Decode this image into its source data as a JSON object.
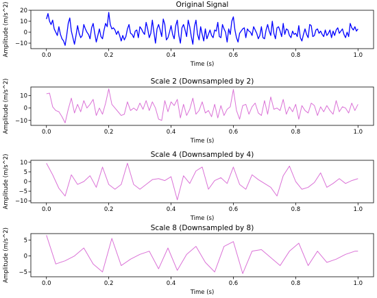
{
  "chart_data": [
    {
      "type": "line",
      "title": "Original Signal",
      "xlabel": "Time (s)",
      "ylabel": "Amplitude (m/s^2)",
      "xlim": [
        -0.05,
        1.05
      ],
      "ylim": [
        -15,
        20
      ],
      "xticks": [
        0.0,
        0.2,
        0.4,
        0.6,
        0.8,
        1.0
      ],
      "xtick_labels": [
        "0.0",
        "0.2",
        "0.4",
        "0.6",
        "0.8",
        "1.0"
      ],
      "yticks": [
        -10,
        0,
        10,
        20
      ],
      "ytick_labels": [
        "−10",
        "0",
        "10",
        "20"
      ],
      "color": "#0000ff",
      "series": [
        {
          "x": [
            0.0,
            0.005,
            0.01,
            0.015,
            0.02,
            0.025,
            0.03,
            0.035,
            0.04,
            0.045,
            0.05,
            0.055,
            0.06,
            0.065,
            0.07,
            0.075,
            0.08,
            0.085,
            0.09,
            0.095,
            0.1,
            0.105,
            0.11,
            0.115,
            0.12,
            0.125,
            0.13,
            0.135,
            0.14,
            0.145,
            0.15,
            0.155,
            0.16,
            0.165,
            0.17,
            0.175,
            0.18,
            0.185,
            0.19,
            0.195,
            0.2,
            0.205,
            0.21,
            0.215,
            0.22,
            0.225,
            0.23,
            0.235,
            0.24,
            0.245,
            0.25,
            0.255,
            0.26,
            0.265,
            0.27,
            0.275,
            0.28,
            0.285,
            0.29,
            0.295,
            0.3,
            0.305,
            0.31,
            0.315,
            0.32,
            0.325,
            0.33,
            0.335,
            0.34,
            0.345,
            0.35,
            0.355,
            0.36,
            0.365,
            0.37,
            0.375,
            0.38,
            0.385,
            0.39,
            0.395,
            0.4,
            0.405,
            0.41,
            0.415,
            0.42,
            0.425,
            0.43,
            0.435,
            0.44,
            0.445,
            0.45,
            0.455,
            0.46,
            0.465,
            0.47,
            0.475,
            0.48,
            0.485,
            0.49,
            0.495,
            0.5,
            0.505,
            0.51,
            0.515,
            0.52,
            0.525,
            0.53,
            0.535,
            0.54,
            0.545,
            0.55,
            0.555,
            0.56,
            0.565,
            0.57,
            0.575,
            0.58,
            0.585,
            0.59,
            0.595,
            0.6,
            0.605,
            0.61,
            0.615,
            0.62,
            0.625,
            0.63,
            0.635,
            0.64,
            0.645,
            0.65,
            0.655,
            0.66,
            0.665,
            0.67,
            0.675,
            0.68,
            0.685,
            0.69,
            0.695,
            0.7,
            0.705,
            0.71,
            0.715,
            0.72,
            0.725,
            0.73,
            0.735,
            0.74,
            0.745,
            0.75,
            0.755,
            0.76,
            0.765,
            0.77,
            0.775,
            0.78,
            0.785,
            0.79,
            0.795,
            0.8,
            0.805,
            0.81,
            0.815,
            0.82,
            0.825,
            0.83,
            0.835,
            0.84,
            0.845,
            0.85,
            0.855,
            0.86,
            0.865,
            0.87,
            0.875,
            0.88,
            0.885,
            0.89,
            0.895,
            0.9,
            0.905,
            0.91,
            0.915,
            0.92,
            0.925,
            0.93,
            0.935,
            0.94,
            0.945,
            0.95,
            0.955,
            0.96,
            0.965,
            0.97,
            0.975,
            0.98,
            0.985,
            0.99,
            0.995,
            1.0
          ],
          "y": [
            12,
            17,
            10,
            7,
            11,
            3,
            0,
            -3,
            5,
            -2,
            -6,
            -8,
            -12,
            -3,
            8,
            13,
            1,
            -5,
            -11,
            -3,
            6,
            -1,
            -5,
            -3,
            7,
            3,
            0,
            -2,
            -6,
            4,
            8,
            -1,
            -9,
            -3,
            3,
            -4,
            -6,
            2,
            8,
            5,
            18,
            7,
            3,
            4,
            2,
            -2,
            1,
            -3,
            -8,
            -3,
            -7,
            -4,
            3,
            7,
            -1,
            -2,
            -5,
            1,
            2,
            -5,
            5,
            3,
            0,
            -2,
            9,
            3,
            -5,
            -1,
            11,
            0,
            -10,
            3,
            7,
            2,
            -4,
            12,
            7,
            -7,
            -5,
            0,
            6,
            -2,
            -6,
            6,
            11,
            -3,
            -10,
            4,
            7,
            2,
            -4,
            11,
            5,
            -4,
            -11,
            5,
            11,
            -2,
            -7,
            5,
            -2,
            -8,
            3,
            -6,
            -2,
            2,
            -3,
            -5,
            2,
            1,
            9,
            -4,
            -5,
            7,
            3,
            0,
            -9,
            3,
            -2,
            10,
            14,
            2,
            -5,
            -9,
            -1,
            1,
            3,
            4,
            -5,
            3,
            1,
            0,
            -3,
            5,
            2,
            -1,
            -6,
            -3,
            5,
            -5,
            -6,
            2,
            7,
            1,
            -3,
            10,
            -1,
            -6,
            4,
            5,
            1,
            -4,
            8,
            -2,
            3,
            2,
            -3,
            -5,
            1,
            -2,
            -1,
            -4,
            6,
            -5,
            -8,
            -2,
            3,
            -2,
            -5,
            7,
            6,
            -4,
            -3,
            2,
            3,
            -1,
            1,
            -2,
            -4,
            2,
            -3,
            -1,
            2,
            -5,
            1,
            -3,
            2,
            4,
            -1,
            1,
            3,
            -2,
            -5,
            0,
            -4,
            8,
            4,
            2,
            5,
            1,
            3
          ]
        }
      ]
    },
    {
      "type": "line",
      "title": "Scale 2 (Downsampled by 2)",
      "xlabel": "Time (s)",
      "ylabel": "Amplitude (m/s^2)",
      "xlim": [
        -0.05,
        1.05
      ],
      "ylim": [
        -14,
        17
      ],
      "xticks": [
        0.0,
        0.2,
        0.4,
        0.6,
        0.8,
        1.0
      ],
      "xtick_labels": [
        "0.0",
        "0.2",
        "0.4",
        "0.6",
        "0.8",
        "1.0"
      ],
      "yticks": [
        -10,
        0,
        10
      ],
      "ytick_labels": [
        "−10",
        "0",
        "10"
      ],
      "color": "#da70d6",
      "series": [
        {
          "x": [
            0.0,
            0.01,
            0.02,
            0.03,
            0.04,
            0.05,
            0.06,
            0.07,
            0.08,
            0.09,
            0.1,
            0.11,
            0.12,
            0.13,
            0.14,
            0.15,
            0.16,
            0.17,
            0.18,
            0.19,
            0.2,
            0.21,
            0.22,
            0.23,
            0.24,
            0.25,
            0.26,
            0.27,
            0.28,
            0.29,
            0.3,
            0.31,
            0.32,
            0.33,
            0.34,
            0.35,
            0.36,
            0.37,
            0.38,
            0.39,
            0.4,
            0.41,
            0.42,
            0.43,
            0.44,
            0.45,
            0.46,
            0.47,
            0.48,
            0.49,
            0.5,
            0.51,
            0.52,
            0.53,
            0.54,
            0.55,
            0.56,
            0.57,
            0.58,
            0.59,
            0.6,
            0.61,
            0.62,
            0.63,
            0.64,
            0.65,
            0.66,
            0.67,
            0.68,
            0.69,
            0.7,
            0.71,
            0.72,
            0.73,
            0.74,
            0.75,
            0.76,
            0.77,
            0.78,
            0.79,
            0.8,
            0.81,
            0.82,
            0.83,
            0.84,
            0.85,
            0.86,
            0.87,
            0.88,
            0.89,
            0.9,
            0.91,
            0.92,
            0.93,
            0.94,
            0.95,
            0.96,
            0.97,
            0.98,
            0.99,
            1.0
          ],
          "y": [
            11.5,
            12,
            1,
            -2,
            -3,
            -7,
            -12,
            -1,
            8,
            -4,
            3,
            -3,
            6,
            0,
            3,
            7,
            -6,
            0,
            -5,
            4,
            15.5,
            3,
            0,
            -3,
            -6,
            -5,
            5,
            -2,
            0,
            -2,
            4,
            -1,
            6,
            -2,
            5,
            0,
            -9,
            -10,
            6,
            -3,
            5,
            2,
            7,
            -8,
            3,
            -6,
            -1,
            8,
            -5,
            -2,
            5,
            -4,
            -2,
            -7,
            3,
            -8,
            2,
            -6,
            -1,
            1,
            15,
            -2,
            -9,
            2,
            3,
            -5,
            1,
            4,
            -4,
            -6,
            6,
            -5,
            9,
            -1,
            0,
            -2,
            7,
            -5,
            1,
            -3,
            3,
            -9,
            2,
            -2,
            -4,
            4,
            2,
            -6,
            1,
            -3,
            2,
            -2,
            -5,
            6,
            -3,
            1,
            0,
            -4,
            4,
            -2,
            3
          ]
        }
      ]
    },
    {
      "type": "line",
      "title": "Scale 4 (Downsampled by 4)",
      "xlabel": "Time (s)",
      "ylabel": "Amplitude (m/s^2)",
      "xlim": [
        -0.05,
        1.05
      ],
      "ylim": [
        -11,
        11
      ],
      "xticks": [
        0.0,
        0.2,
        0.4,
        0.6,
        0.8,
        1.0
      ],
      "xtick_labels": [
        "0.0",
        "0.2",
        "0.4",
        "0.6",
        "0.8",
        "1.0"
      ],
      "yticks": [
        -10,
        -5,
        0,
        5,
        10
      ],
      "ytick_labels": [
        "−10",
        "−5",
        "0",
        "5",
        "10"
      ],
      "color": "#da70d6",
      "series": [
        {
          "x": [
            0.0,
            0.02,
            0.04,
            0.06,
            0.08,
            0.1,
            0.12,
            0.14,
            0.16,
            0.18,
            0.2,
            0.22,
            0.24,
            0.26,
            0.28,
            0.3,
            0.32,
            0.34,
            0.36,
            0.38,
            0.4,
            0.42,
            0.44,
            0.46,
            0.48,
            0.5,
            0.52,
            0.54,
            0.56,
            0.58,
            0.6,
            0.62,
            0.64,
            0.66,
            0.68,
            0.7,
            0.72,
            0.74,
            0.76,
            0.78,
            0.8,
            0.82,
            0.84,
            0.86,
            0.88,
            0.9,
            0.92,
            0.94,
            0.96,
            0.98,
            1.0
          ],
          "y": [
            9.5,
            3.5,
            -3.5,
            -7.5,
            3.5,
            -1.5,
            0,
            3,
            -3,
            7.5,
            -1.5,
            -4,
            -1.5,
            9.5,
            -1.5,
            -4,
            -1.5,
            1,
            1.5,
            0.5,
            2.5,
            -9.5,
            3,
            -1,
            5.5,
            7.5,
            -4,
            0.5,
            2,
            -1,
            7.5,
            -1.5,
            -4,
            3.5,
            1,
            -1,
            -3,
            -7.5,
            3,
            8,
            0,
            -4,
            -3,
            -0.5,
            4.5,
            -3,
            -1,
            1.5,
            -1,
            0.5,
            1.5
          ]
        }
      ]
    },
    {
      "type": "line",
      "title": "Scale 8 (Downsampled by 8)",
      "xlabel": "Time (s)",
      "ylabel": "Amplitude (m/s^2)",
      "xlim": [
        -0.05,
        1.05
      ],
      "ylim": [
        -6.5,
        7
      ],
      "xticks": [
        0.0,
        0.2,
        0.4,
        0.6,
        0.8,
        1.0
      ],
      "xtick_labels": [
        "0.0",
        "0.2",
        "0.4",
        "0.6",
        "0.8",
        "1.0"
      ],
      "yticks": [
        -5,
        0,
        5
      ],
      "ytick_labels": [
        "−5",
        "0",
        "5"
      ],
      "color": "#da70d6",
      "series": [
        {
          "x": [
            0.0,
            0.03,
            0.06,
            0.09,
            0.12,
            0.15,
            0.18,
            0.21,
            0.24,
            0.27,
            0.3,
            0.33,
            0.36,
            0.39,
            0.42,
            0.45,
            0.48,
            0.51,
            0.54,
            0.57,
            0.6,
            0.63,
            0.66,
            0.69,
            0.72,
            0.75,
            0.78,
            0.81,
            0.84,
            0.87,
            0.9,
            0.93,
            0.96,
            0.99,
            1.0
          ],
          "y": [
            6.5,
            -2.5,
            -1.5,
            0,
            2.5,
            -2.5,
            -5,
            5.5,
            -3,
            -1,
            0.5,
            1.5,
            -4,
            2.5,
            -4.5,
            0.5,
            3,
            -2,
            -5,
            3,
            4.5,
            -5.5,
            1.5,
            2,
            -0.5,
            -3,
            1.5,
            4,
            -3,
            1.5,
            -2,
            -1,
            0.5,
            1.5,
            1.5
          ]
        }
      ]
    }
  ]
}
